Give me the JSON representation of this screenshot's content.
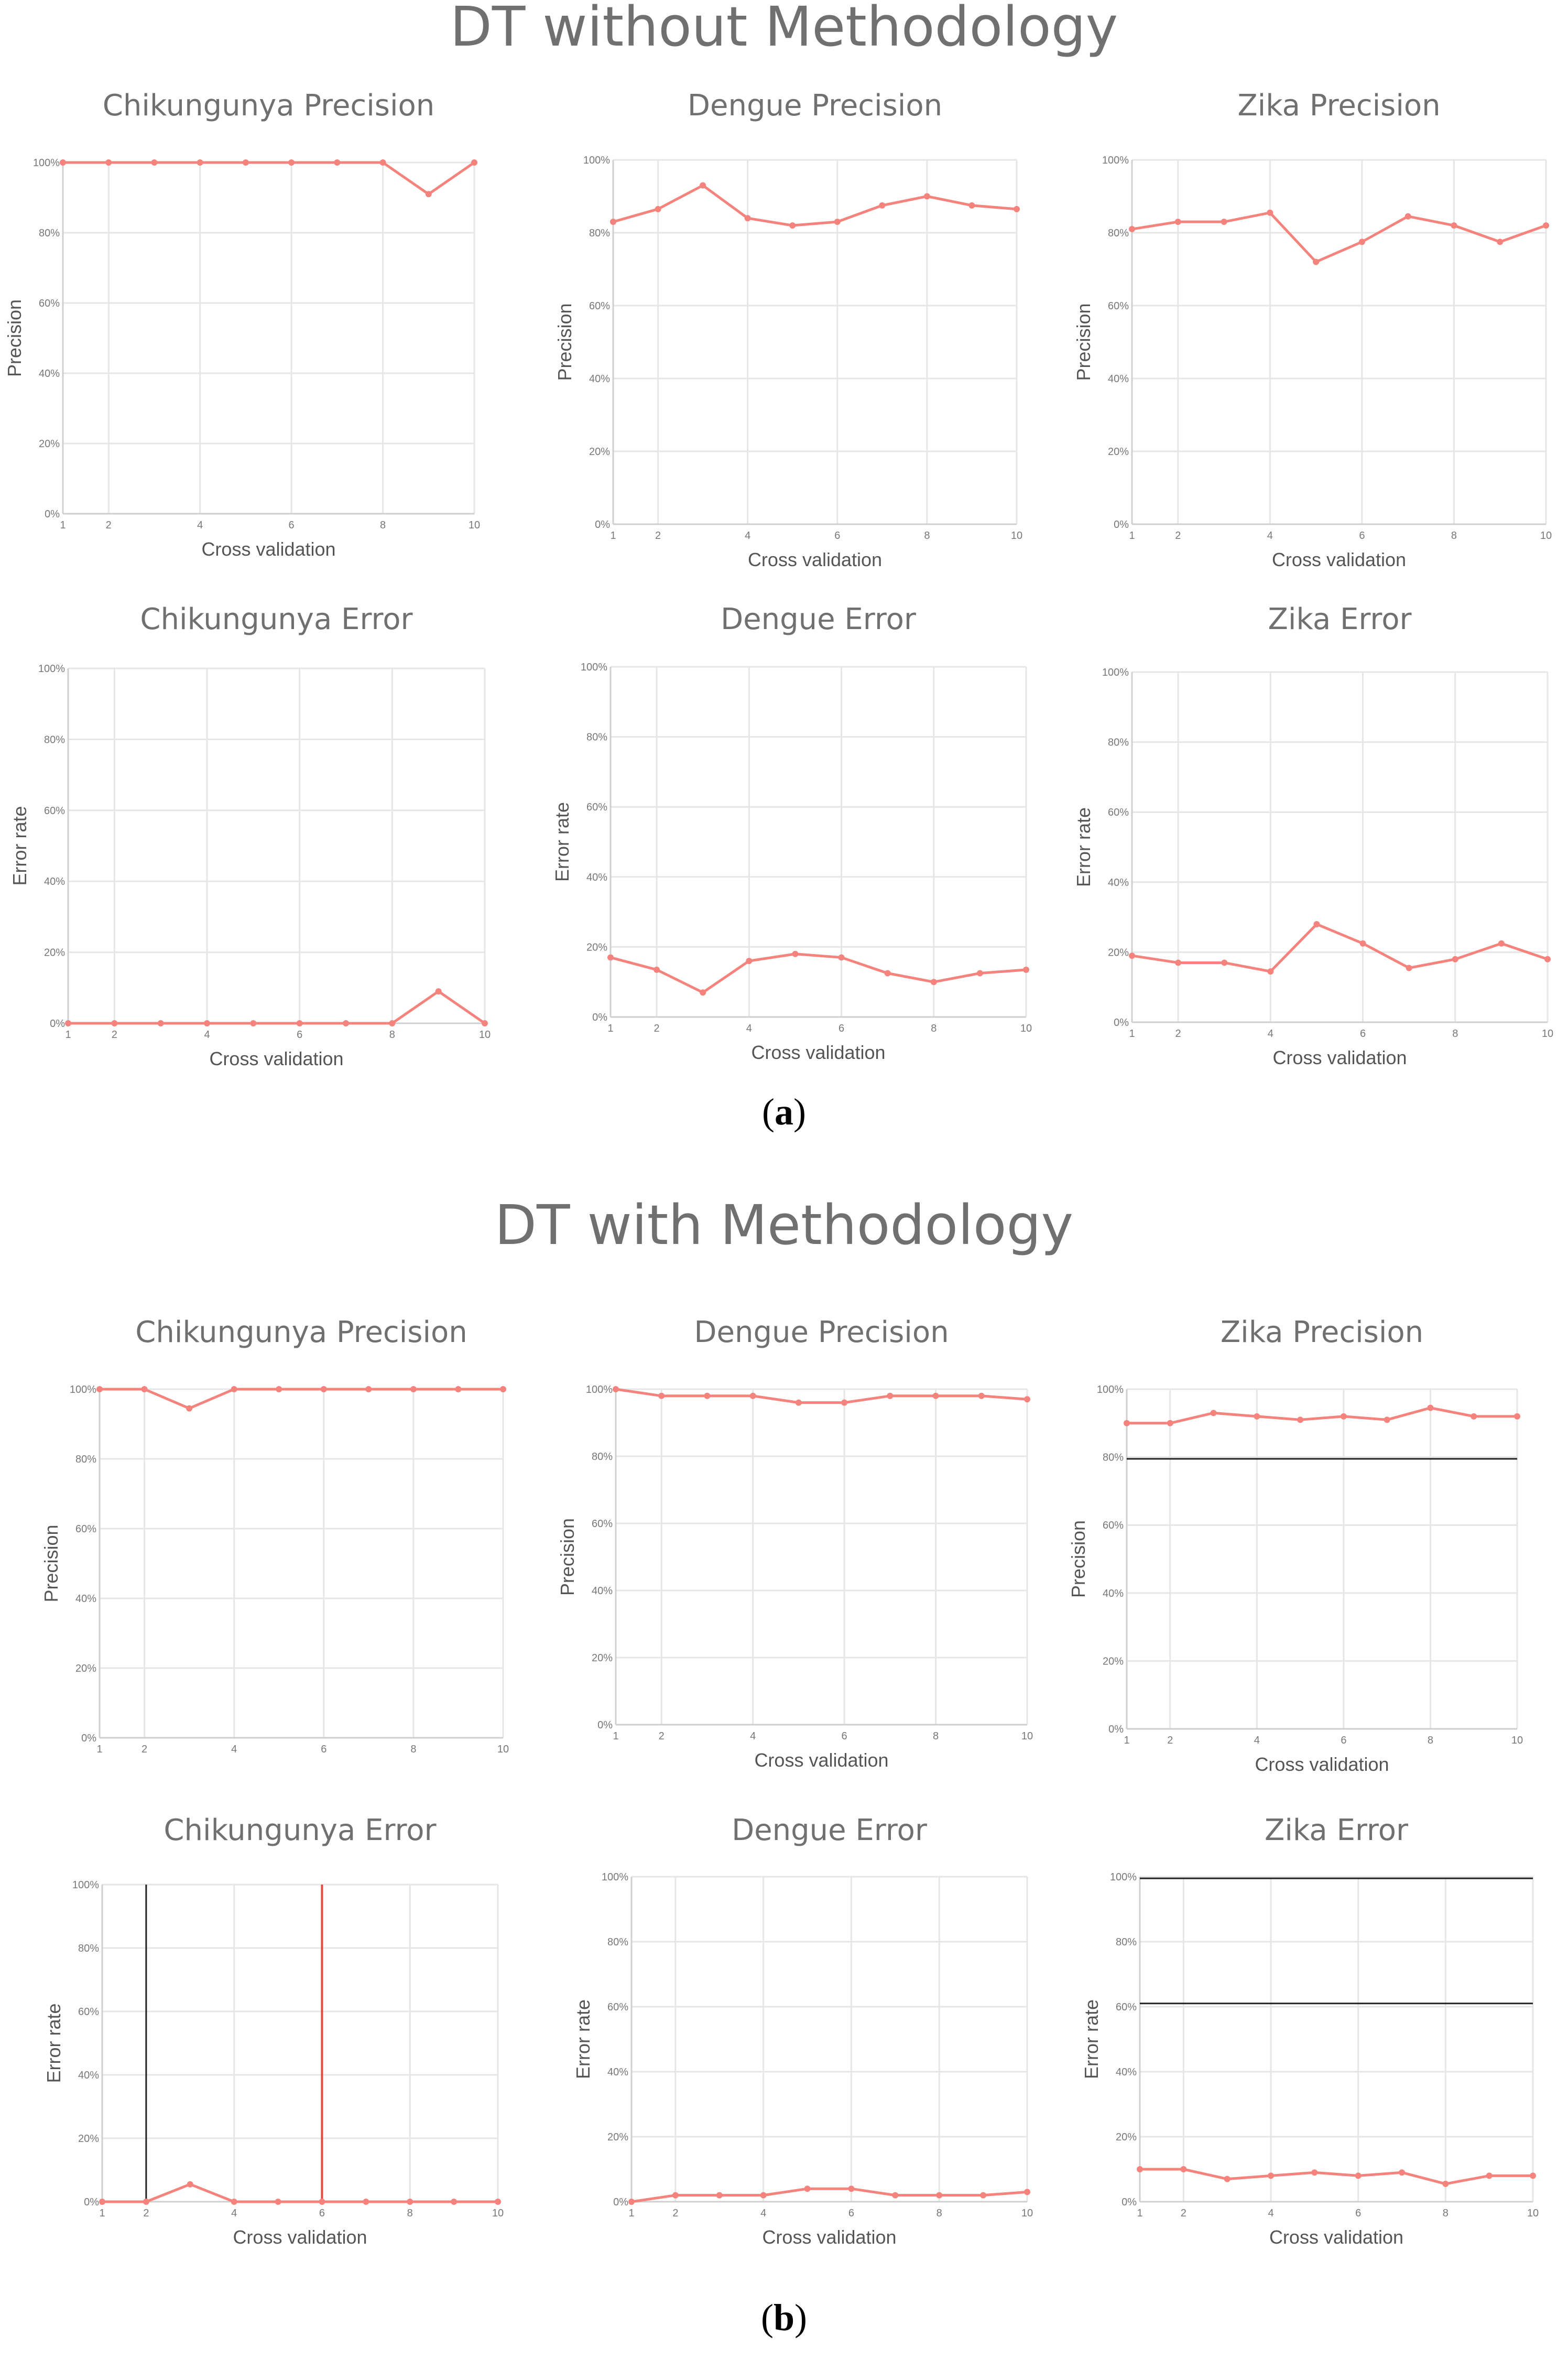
{
  "sections": [
    {
      "title": "DT without Methodology",
      "caption_label": "a"
    },
    {
      "title": "DT with Methodology",
      "caption_label": "b"
    }
  ],
  "colors": {
    "series": "#f4837d",
    "grid": "#e6e6e6",
    "title": "#707070",
    "artifact": "#222222"
  },
  "chart_data": [
    {
      "type": "line",
      "title": "Chikungunya Precision",
      "xlabel": "Cross validation",
      "ylabel": "Precision",
      "x": [
        1,
        2,
        3,
        4,
        5,
        6,
        7,
        8,
        9,
        10
      ],
      "values": [
        100,
        100,
        100,
        100,
        100,
        100,
        100,
        100,
        91,
        100
      ],
      "xticks": [
        "1",
        "2",
        "4",
        "6",
        "8",
        "10"
      ],
      "xtick_values": [
        1,
        2,
        4,
        6,
        8,
        10
      ],
      "yticks": [
        "0%",
        "20%",
        "40%",
        "60%",
        "80%",
        "100%"
      ],
      "ylim": [
        0,
        100
      ],
      "xlim": [
        1,
        10
      ],
      "grid": true
    },
    {
      "type": "line",
      "title": "Dengue Precision",
      "xlabel": "Cross validation",
      "ylabel": "Precision",
      "x": [
        1,
        2,
        3,
        4,
        5,
        6,
        7,
        8,
        9,
        10
      ],
      "values": [
        83,
        86.5,
        93,
        84,
        82,
        83,
        87.5,
        90,
        87.5,
        86.5
      ],
      "xticks": [
        "1",
        "2",
        "4",
        "6",
        "8",
        "10"
      ],
      "xtick_values": [
        1,
        2,
        4,
        6,
        8,
        10
      ],
      "yticks": [
        "0%",
        "20%",
        "40%",
        "60%",
        "80%",
        "100%"
      ],
      "ylim": [
        0,
        100
      ],
      "xlim": [
        1,
        10
      ],
      "grid": true
    },
    {
      "type": "line",
      "title": "Zika Precision",
      "xlabel": "Cross validation",
      "ylabel": "Precision",
      "x": [
        1,
        2,
        3,
        4,
        5,
        6,
        7,
        8,
        9,
        10
      ],
      "values": [
        81,
        83,
        83,
        85.5,
        72,
        77.5,
        84.5,
        82,
        77.5,
        82
      ],
      "xticks": [
        "1",
        "2",
        "4",
        "6",
        "8",
        "10"
      ],
      "xtick_values": [
        1,
        2,
        4,
        6,
        8,
        10
      ],
      "yticks": [
        "0%",
        "20%",
        "40%",
        "60%",
        "80%",
        "100%"
      ],
      "ylim": [
        0,
        100
      ],
      "xlim": [
        1,
        10
      ],
      "grid": true
    },
    {
      "type": "line",
      "title": "Chikungunya Error",
      "xlabel": "Cross validation",
      "ylabel": "Error rate",
      "x": [
        1,
        2,
        3,
        4,
        5,
        6,
        7,
        8,
        9,
        10
      ],
      "values": [
        0,
        0,
        0,
        0,
        0,
        0,
        0,
        0,
        9,
        0
      ],
      "xticks": [
        "1",
        "2",
        "4",
        "6",
        "8",
        "10"
      ],
      "xtick_values": [
        1,
        2,
        4,
        6,
        8,
        10
      ],
      "yticks": [
        "0%",
        "20%",
        "40%",
        "60%",
        "80%",
        "100%"
      ],
      "ylim": [
        0,
        100
      ],
      "xlim": [
        1,
        10
      ],
      "grid": true
    },
    {
      "type": "line",
      "title": "Dengue Error",
      "xlabel": "Cross validation",
      "ylabel": "Error rate",
      "x": [
        1,
        2,
        3,
        4,
        5,
        6,
        7,
        8,
        9,
        10
      ],
      "values": [
        17,
        13.5,
        7,
        16,
        18,
        17,
        12.5,
        10,
        12.5,
        13.5
      ],
      "xticks": [
        "1",
        "2",
        "4",
        "6",
        "8",
        "10"
      ],
      "xtick_values": [
        1,
        2,
        4,
        6,
        8,
        10
      ],
      "yticks": [
        "0%",
        "20%",
        "40%",
        "60%",
        "80%",
        "100%"
      ],
      "ylim": [
        0,
        100
      ],
      "xlim": [
        1,
        10
      ],
      "grid": true
    },
    {
      "type": "line",
      "title": "Zika Error",
      "xlabel": "Cross validation",
      "ylabel": "Error rate",
      "x": [
        1,
        2,
        3,
        4,
        5,
        6,
        7,
        8,
        9,
        10
      ],
      "values": [
        19,
        17,
        17,
        14.5,
        28,
        22.5,
        15.5,
        18,
        22.5,
        18
      ],
      "xticks": [
        "1",
        "2",
        "4",
        "6",
        "8",
        "10"
      ],
      "xtick_values": [
        1,
        2,
        4,
        6,
        8,
        10
      ],
      "yticks": [
        "0%",
        "20%",
        "40%",
        "60%",
        "80%",
        "100%"
      ],
      "ylim": [
        0,
        100
      ],
      "xlim": [
        1,
        10
      ],
      "grid": true
    },
    {
      "type": "line",
      "title": "Chikungunya Precision",
      "xlabel": "",
      "ylabel": "Precision",
      "x": [
        1,
        2,
        3,
        4,
        5,
        6,
        7,
        8,
        9,
        10
      ],
      "values": [
        100,
        100,
        94.5,
        100,
        100,
        100,
        100,
        100,
        100,
        100
      ],
      "xticks": [
        "1",
        "2",
        "4",
        "6",
        "8",
        "10"
      ],
      "xtick_values": [
        1,
        2,
        4,
        6,
        8,
        10
      ],
      "yticks": [
        "0%",
        "20%",
        "40%",
        "60%",
        "80%",
        "100%"
      ],
      "ylim": [
        0,
        100
      ],
      "xlim": [
        1,
        10
      ],
      "grid": true
    },
    {
      "type": "line",
      "title": "Dengue Precision",
      "xlabel": "Cross validation",
      "ylabel": "Precision",
      "x": [
        1,
        2,
        3,
        4,
        5,
        6,
        7,
        8,
        9,
        10
      ],
      "values": [
        100,
        98,
        98,
        98,
        96,
        96,
        98,
        98,
        98,
        97
      ],
      "xticks": [
        "1",
        "2",
        "4",
        "6",
        "8",
        "10"
      ],
      "xtick_values": [
        1,
        2,
        4,
        6,
        8,
        10
      ],
      "yticks": [
        "0%",
        "20%",
        "40%",
        "60%",
        "80%",
        "100%"
      ],
      "ylim": [
        0,
        100
      ],
      "xlim": [
        1,
        10
      ],
      "grid": true
    },
    {
      "type": "line",
      "title": "Zika Precision",
      "xlabel": "Cross validation",
      "ylabel": "Precision",
      "x": [
        1,
        2,
        3,
        4,
        5,
        6,
        7,
        8,
        9,
        10
      ],
      "values": [
        90,
        90,
        93,
        92,
        91,
        92,
        91,
        94.5,
        92,
        92
      ],
      "xticks": [
        "1",
        "2",
        "4",
        "6",
        "8",
        "10"
      ],
      "xtick_values": [
        1,
        2,
        4,
        6,
        8,
        10
      ],
      "yticks": [
        "0%",
        "20%",
        "40%",
        "60%",
        "80%",
        "100%"
      ],
      "ylim": [
        0,
        100
      ],
      "xlim": [
        1,
        10
      ],
      "grid": true,
      "artifact_hlines": [
        79.5
      ],
      "artifact_vlines": []
    },
    {
      "type": "line",
      "title": "Chikungunya Error",
      "xlabel": "Cross validation",
      "ylabel": "Error rate",
      "x": [
        1,
        2,
        3,
        4,
        5,
        6,
        7,
        8,
        9,
        10
      ],
      "values": [
        0,
        0,
        5.5,
        0,
        0,
        0,
        0,
        0,
        0,
        0
      ],
      "xticks": [
        "1",
        "2",
        "4",
        "6",
        "8",
        "10"
      ],
      "xtick_values": [
        1,
        2,
        4,
        6,
        8,
        10
      ],
      "yticks": [
        "0%",
        "20%",
        "40%",
        "60%",
        "80%",
        "100%"
      ],
      "ylim": [
        0,
        100
      ],
      "xlim": [
        1,
        10
      ],
      "grid": true,
      "artifact_hlines": [],
      "artifact_vlines": [
        2
      ],
      "artifact_red_vlines": [
        6
      ]
    },
    {
      "type": "line",
      "title": "Dengue Error",
      "xlabel": "Cross validation",
      "ylabel": "Error rate",
      "x": [
        1,
        2,
        3,
        4,
        5,
        6,
        7,
        8,
        9,
        10
      ],
      "values": [
        0,
        2,
        2,
        2,
        4,
        4,
        2,
        2,
        2,
        3
      ],
      "xticks": [
        "1",
        "2",
        "4",
        "6",
        "8",
        "10"
      ],
      "xtick_values": [
        1,
        2,
        4,
        6,
        8,
        10
      ],
      "yticks": [
        "0%",
        "20%",
        "40%",
        "60%",
        "80%",
        "100%"
      ],
      "ylim": [
        0,
        100
      ],
      "xlim": [
        1,
        10
      ],
      "grid": true
    },
    {
      "type": "line",
      "title": "Zika Error",
      "xlabel": "Cross validation",
      "ylabel": "Error rate",
      "x": [
        1,
        2,
        3,
        4,
        5,
        6,
        7,
        8,
        9,
        10
      ],
      "values": [
        10,
        10,
        7,
        8,
        9,
        8,
        9,
        5.5,
        8,
        8
      ],
      "xticks": [
        "1",
        "2",
        "4",
        "6",
        "8",
        "10"
      ],
      "xtick_values": [
        1,
        2,
        4,
        6,
        8,
        10
      ],
      "yticks": [
        "0%",
        "20%",
        "40%",
        "60%",
        "80%",
        "100%"
      ],
      "ylim": [
        0,
        100
      ],
      "xlim": [
        1,
        10
      ],
      "grid": true,
      "artifact_hlines": [
        99.5,
        61
      ],
      "artifact_vlines": []
    }
  ]
}
